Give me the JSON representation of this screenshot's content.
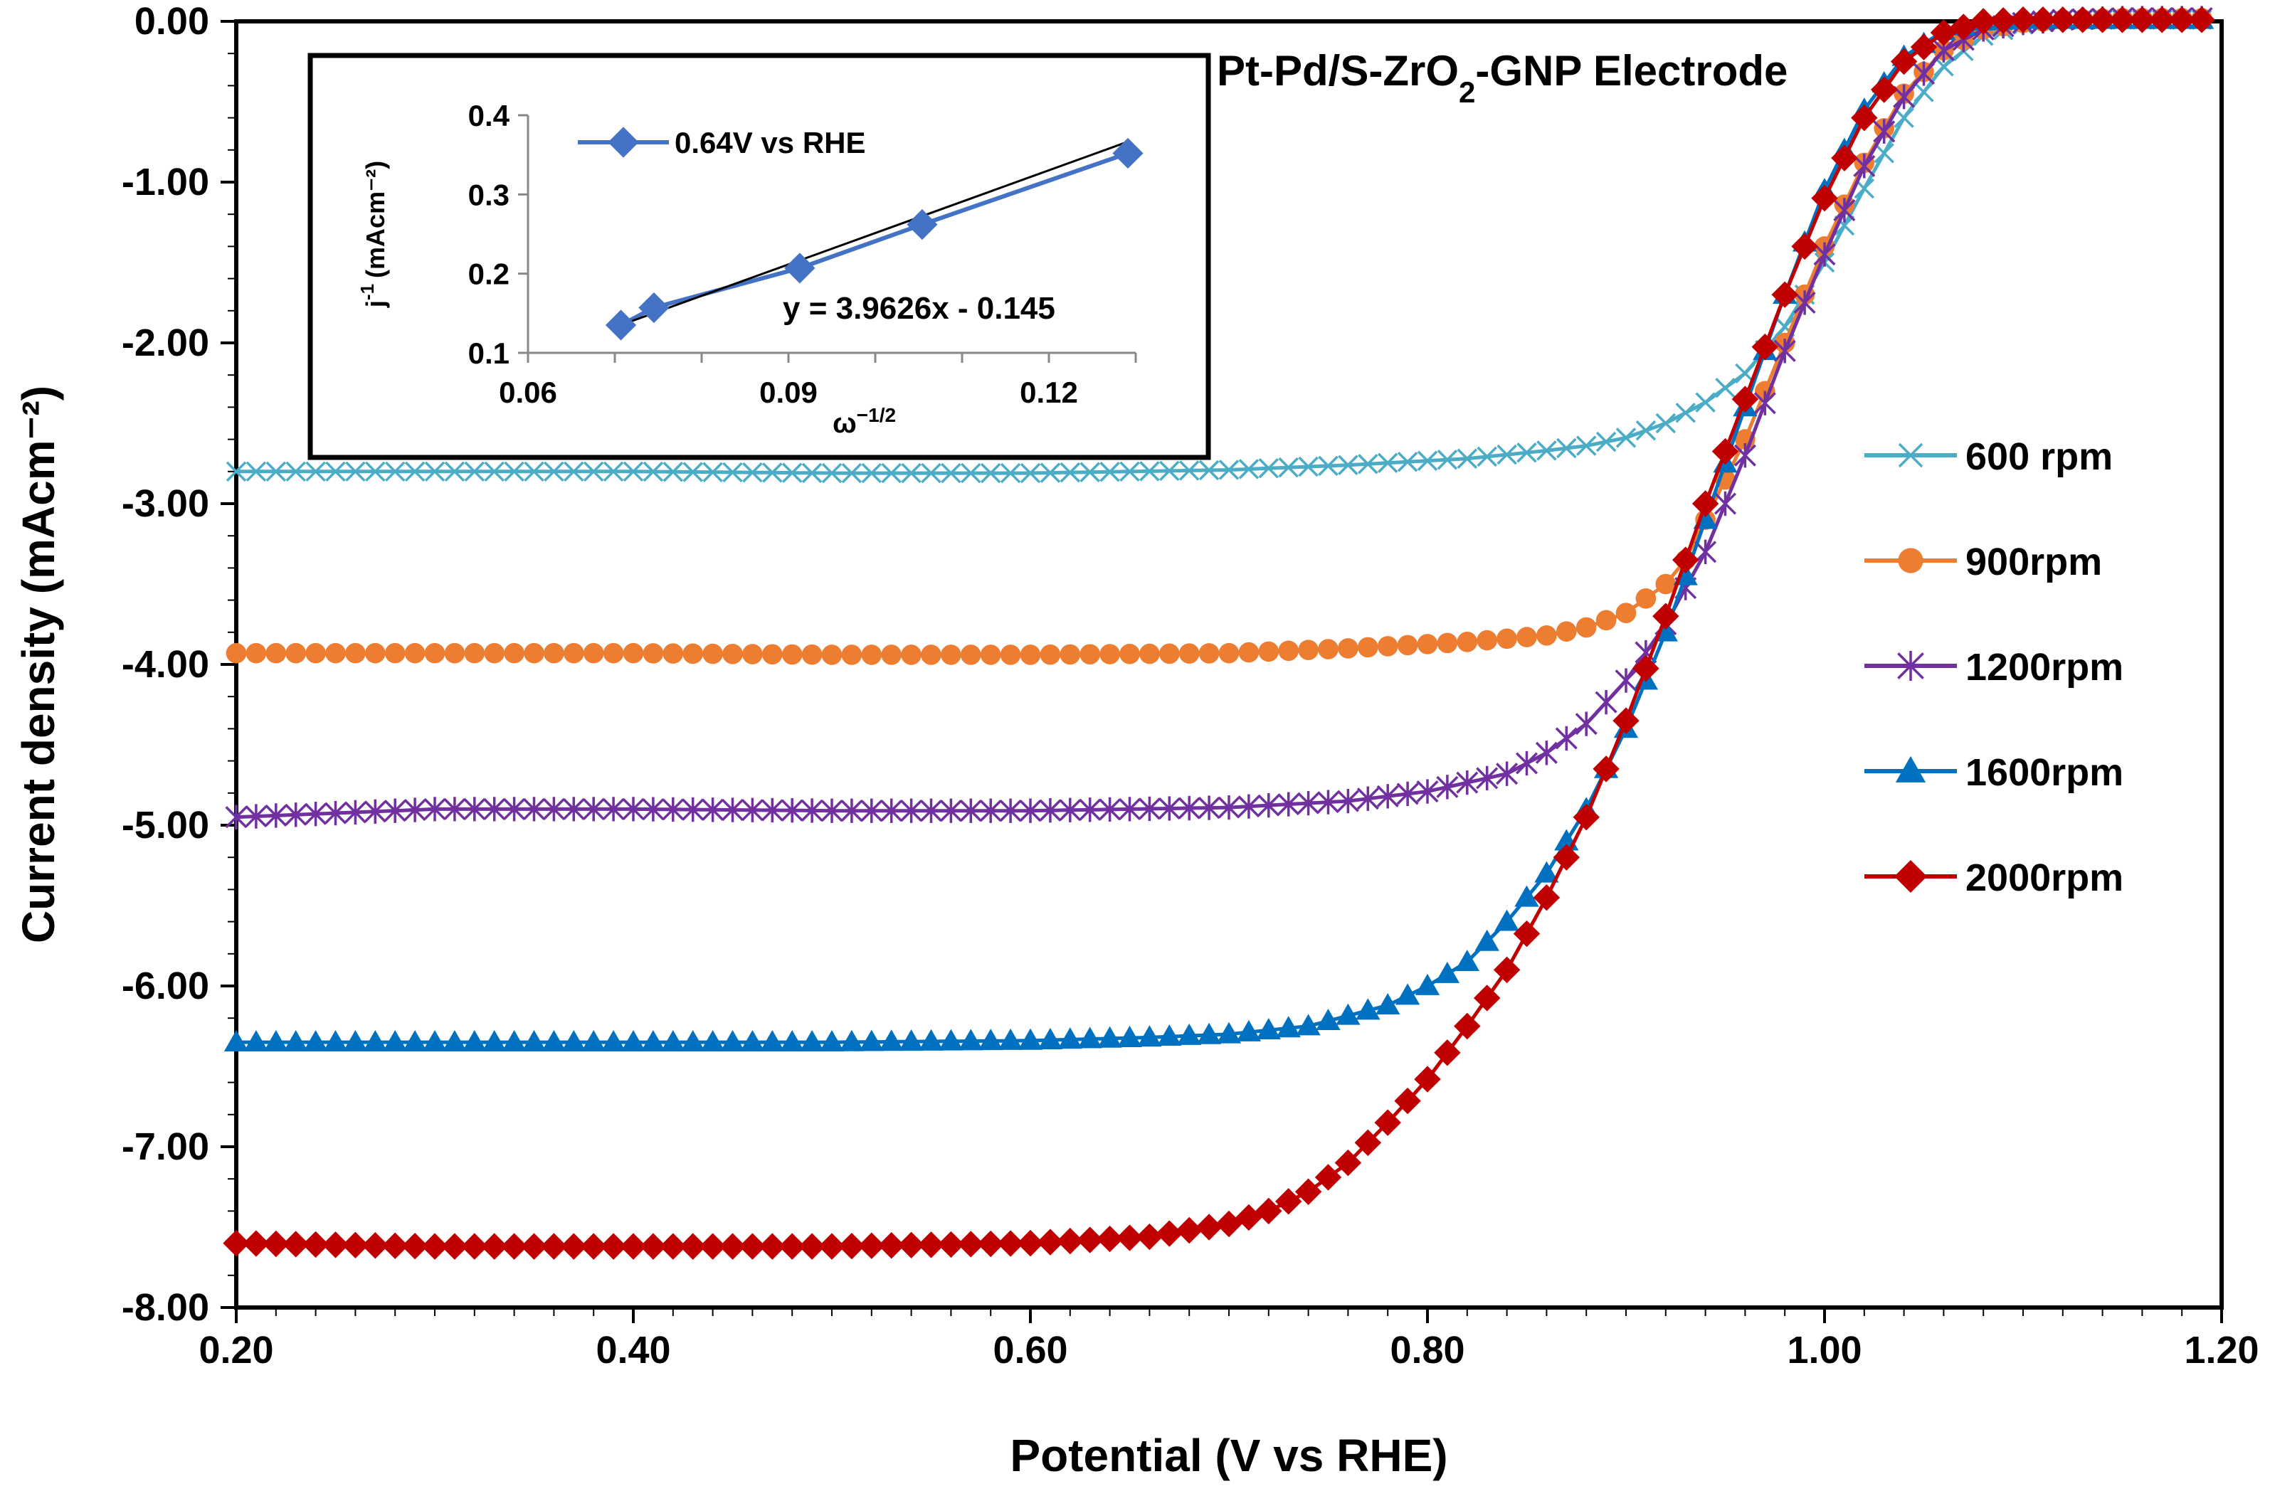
{
  "chart_data": [
    {
      "type": "line",
      "title": "Pt-Pd/S-ZrO₂-GNP Electrode",
      "title_parts": {
        "pre": "Pt-Pd/S-ZrO",
        "sub": "2",
        "post": "-GNP Electrode"
      },
      "xlabel": "Potential (V vs RHE)",
      "ylabel": "Current density (mAcm⁻²)",
      "xlim": [
        0.2,
        1.2
      ],
      "ylim": [
        -8.0,
        0.0
      ],
      "x_ticks": [
        0.2,
        0.4,
        0.6,
        0.8,
        1.0,
        1.2
      ],
      "x_tick_labels": [
        "0.20",
        "0.40",
        "0.60",
        "0.80",
        "1.00",
        "1.20"
      ],
      "y_ticks": [
        0,
        -1,
        -2,
        -3,
        -4,
        -5,
        -6,
        -7,
        -8
      ],
      "y_tick_labels": [
        "0.00",
        "-1.00",
        "-2.00",
        "-3.00",
        "-4.00",
        "-5.00",
        "-6.00",
        "-7.00",
        "-8.00"
      ],
      "grid": false,
      "legend_position": "right",
      "series": [
        {
          "name": "600 rpm",
          "color": "#4BACC6",
          "marker": "x",
          "x": [
            0.2,
            0.3,
            0.4,
            0.5,
            0.6,
            0.7,
            0.76,
            0.82,
            0.86,
            0.88,
            0.9,
            0.92,
            0.94,
            0.96,
            0.98,
            1.0,
            1.02,
            1.04,
            1.06,
            1.08,
            1.1,
            1.12,
            1.15,
            1.19
          ],
          "y": [
            -2.8,
            -2.8,
            -2.8,
            -2.81,
            -2.81,
            -2.79,
            -2.76,
            -2.72,
            -2.67,
            -2.64,
            -2.59,
            -2.5,
            -2.37,
            -2.19,
            -1.9,
            -1.5,
            -1.04,
            -0.6,
            -0.28,
            -0.09,
            -0.02,
            0.01,
            0.01,
            0.01
          ]
        },
        {
          "name": "900rpm",
          "color": "#ED7D31",
          "marker": "circle",
          "x": [
            0.2,
            0.3,
            0.4,
            0.5,
            0.6,
            0.7,
            0.76,
            0.82,
            0.86,
            0.88,
            0.9,
            0.92,
            0.93,
            0.94,
            0.96,
            0.98,
            1.0,
            1.02,
            1.04,
            1.06,
            1.08,
            1.1,
            1.12,
            1.15,
            1.19
          ],
          "y": [
            -3.93,
            -3.93,
            -3.93,
            -3.94,
            -3.94,
            -3.93,
            -3.9,
            -3.86,
            -3.82,
            -3.77,
            -3.68,
            -3.5,
            -3.35,
            -3.1,
            -2.6,
            -2.0,
            -1.4,
            -0.88,
            -0.45,
            -0.18,
            -0.05,
            -0.01,
            0.01,
            0.02,
            0.02
          ]
        },
        {
          "name": "1200rpm",
          "color": "#7030A0",
          "marker": "star",
          "x": [
            0.2,
            0.3,
            0.4,
            0.5,
            0.6,
            0.7,
            0.76,
            0.8,
            0.84,
            0.86,
            0.88,
            0.9,
            0.92,
            0.94,
            0.96,
            0.98,
            1.0,
            1.02,
            1.04,
            1.06,
            1.08,
            1.1,
            1.12,
            1.15,
            1.19
          ],
          "y": [
            -4.95,
            -4.9,
            -4.9,
            -4.91,
            -4.91,
            -4.89,
            -4.85,
            -4.79,
            -4.68,
            -4.55,
            -4.37,
            -4.1,
            -3.75,
            -3.3,
            -2.7,
            -2.05,
            -1.45,
            -0.9,
            -0.47,
            -0.18,
            -0.05,
            -0.01,
            0.01,
            0.02,
            0.02
          ]
        },
        {
          "name": "1600rpm",
          "color": "#0070C0",
          "marker": "triangle",
          "x": [
            0.2,
            0.3,
            0.4,
            0.5,
            0.6,
            0.66,
            0.7,
            0.74,
            0.78,
            0.8,
            0.82,
            0.84,
            0.86,
            0.88,
            0.9,
            0.92,
            0.94,
            0.96,
            0.98,
            1.0,
            1.02,
            1.04,
            1.06,
            1.08,
            1.1,
            1.12,
            1.15,
            1.19
          ],
          "y": [
            -6.35,
            -6.35,
            -6.35,
            -6.35,
            -6.34,
            -6.32,
            -6.3,
            -6.25,
            -6.12,
            -6.0,
            -5.85,
            -5.6,
            -5.3,
            -4.9,
            -4.4,
            -3.8,
            -3.1,
            -2.4,
            -1.7,
            -1.05,
            -0.55,
            -0.22,
            -0.06,
            0.0,
            0.01,
            0.01,
            0.01,
            0.01
          ]
        },
        {
          "name": "2000rpm",
          "color": "#C00000",
          "marker": "diamond",
          "x": [
            0.2,
            0.3,
            0.4,
            0.5,
            0.6,
            0.66,
            0.7,
            0.72,
            0.74,
            0.76,
            0.78,
            0.8,
            0.82,
            0.84,
            0.86,
            0.88,
            0.9,
            0.92,
            0.94,
            0.96,
            0.98,
            1.0,
            1.02,
            1.04,
            1.06,
            1.08,
            1.1,
            1.12,
            1.15,
            1.19
          ],
          "y": [
            -7.6,
            -7.62,
            -7.62,
            -7.62,
            -7.6,
            -7.56,
            -7.48,
            -7.4,
            -7.28,
            -7.1,
            -6.85,
            -6.58,
            -6.25,
            -5.9,
            -5.45,
            -4.95,
            -4.35,
            -3.7,
            -3.0,
            -2.35,
            -1.7,
            -1.1,
            -0.6,
            -0.25,
            -0.07,
            0.0,
            0.01,
            0.01,
            0.01,
            0.01
          ]
        }
      ]
    },
    {
      "type": "line",
      "title": "",
      "xlabel": "ω⁻¹ᐟ²",
      "xlabel_parts": {
        "base": "ω",
        "sup": "−1/2"
      },
      "ylabel_parts": {
        "base": "j",
        "sup": "-1",
        "unit": "(mAcm⁻²)"
      },
      "xlim": [
        0.06,
        0.13
      ],
      "ylim": [
        0.1,
        0.4
      ],
      "x_ticks": [
        0.06,
        0.09,
        0.12
      ],
      "x_tick_labels": [
        "0.06",
        "0.09",
        "0.12"
      ],
      "y_ticks": [
        0.1,
        0.2,
        0.3,
        0.4
      ],
      "y_tick_labels": [
        "0.1",
        "0.2",
        "0.3",
        "0.4"
      ],
      "grid": false,
      "legend_position": "top-left",
      "series": [
        {
          "name": "0.64V vs RHE",
          "color": "#4472C4",
          "marker": "diamond",
          "x": [
            0.0707,
            0.0745,
            0.0913,
            0.1054,
            0.1291
          ],
          "y": [
            0.135,
            0.157,
            0.207,
            0.262,
            0.352
          ]
        }
      ],
      "trendline": {
        "equation": "y = 3.9626x - 0.145",
        "slope": 3.9626,
        "intercept": -0.145,
        "color": "#000000"
      }
    }
  ]
}
